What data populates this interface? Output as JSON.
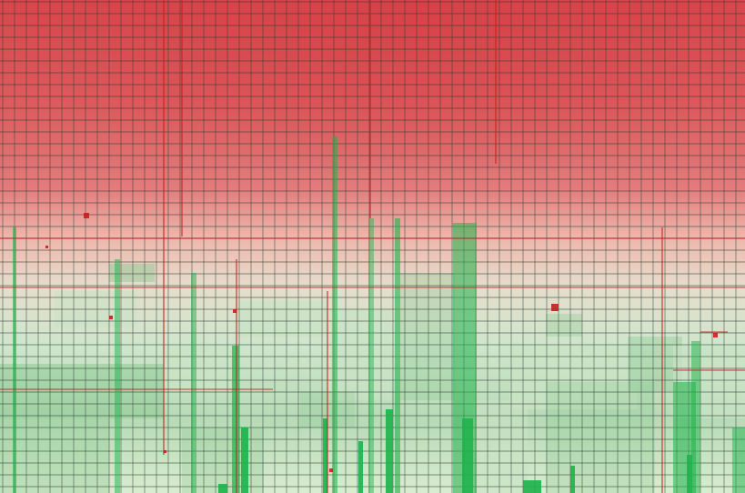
{
  "artwork": {
    "kind": "abstract-grid-gradient",
    "colors": {
      "top_red": "#d8474c",
      "mid_red": "#e27b7b",
      "blend_pink": "#eeb5aa",
      "pale_green": "#c9e3c4",
      "mid_green": "#8fca95",
      "bright_green": "#1db24a",
      "grid_dark": "#2a3f33",
      "accent_red": "#c71e1e"
    }
  }
}
